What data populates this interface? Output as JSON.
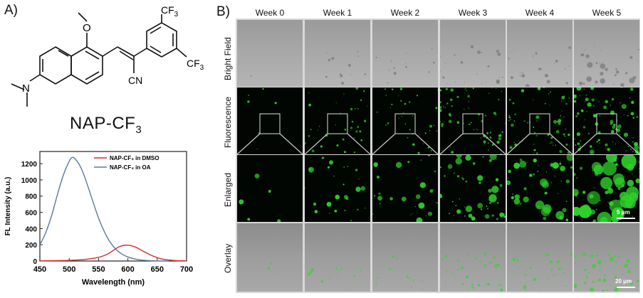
{
  "panel_a_label": "A)",
  "panel_b_label": "B)",
  "compound": {
    "name_prefix": "NAP-CF",
    "name_sub": "3",
    "atom_o": "O",
    "atom_n": "N",
    "atom_cn": "CN",
    "atom_cf3_top": "CF",
    "atom_cf3_right": "CF",
    "atom_sub": "3"
  },
  "chart_data": {
    "type": "line",
    "xlabel": "Wavelength (nm)",
    "ylabel": "FL Intensity (a.u.)",
    "xlim": [
      450,
      700
    ],
    "ylim": [
      0,
      1350
    ],
    "xticks": [
      "450",
      "500",
      "550",
      "600",
      "650",
      "700"
    ],
    "yticks": [
      "0",
      "200",
      "400",
      "600",
      "800",
      "1000",
      "1200"
    ],
    "legend_position": "top-right",
    "series": [
      {
        "name": "NAP-CF₃ in DMSO",
        "color": "#d9292b",
        "x": [
          450,
          475,
          500,
          525,
          550,
          565,
          575,
          585,
          595,
          605,
          615,
          625,
          640,
          655,
          670,
          685,
          700
        ],
        "y": [
          2,
          4,
          8,
          18,
          45,
          85,
          130,
          175,
          195,
          190,
          165,
          125,
          70,
          30,
          12,
          4,
          2
        ]
      },
      {
        "name": "NAP-CF₃ in OA",
        "color": "#5b7b9c",
        "x": [
          450,
          460,
          470,
          480,
          490,
          500,
          505,
          510,
          520,
          530,
          540,
          550,
          560,
          570,
          580,
          590,
          600,
          610,
          620,
          630,
          640,
          650,
          660,
          670
        ],
        "y": [
          200,
          350,
          560,
          820,
          1060,
          1230,
          1275,
          1260,
          1150,
          960,
          740,
          530,
          360,
          230,
          140,
          85,
          50,
          28,
          15,
          8,
          4,
          2,
          1,
          0
        ]
      }
    ]
  },
  "grid": {
    "weeks": [
      "Week 0",
      "Week 1",
      "Week 2",
      "Week 3",
      "Week 4",
      "Week 5"
    ],
    "rows": [
      "Bright Field",
      "Fluorescence",
      "Enlarged",
      "Overlay"
    ],
    "scalebar_enlarged": "5 μm",
    "scalebar_overlay": "20 μm",
    "droplet_density_relative": [
      0.05,
      0.3,
      0.3,
      0.6,
      0.55,
      0.75
    ],
    "droplet_size_relative": [
      0.2,
      0.3,
      0.3,
      0.45,
      0.55,
      1.0
    ]
  }
}
